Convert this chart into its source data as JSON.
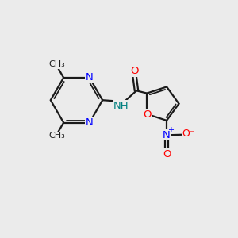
{
  "bg_color": "#ebebeb",
  "bond_color": "#1a1a1a",
  "N_color": "#0000ff",
  "O_color": "#ff0000",
  "NH_color": "#008080",
  "figsize": [
    3.0,
    3.0
  ],
  "dpi": 100,
  "xlim": [
    0,
    10
  ],
  "ylim": [
    0,
    10
  ]
}
